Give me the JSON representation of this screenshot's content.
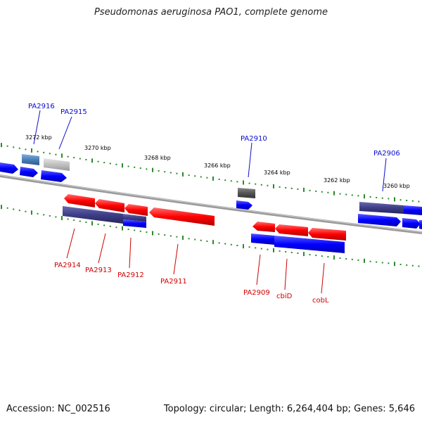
{
  "title": "Pseudomonas aeruginosa PAO1, complete genome",
  "footer": {
    "accession": "Accession: NC_002516",
    "topology": "Topology: circular; Length: 6,264,404 bp; Genes: 5,646"
  },
  "ticks": [
    "3272 kbp",
    "3270 kbp",
    "3268 kbp",
    "3266 kbp",
    "3264 kbp",
    "3262 kbp",
    "3260 kbp"
  ],
  "genes_top": [
    "PA2916",
    "PA2915",
    "PA2910",
    "PA2906"
  ],
  "genes_bottom": [
    "PA2914",
    "PA2913",
    "PA2912",
    "PA2911",
    "PA2909",
    "cbiD",
    "cobL"
  ],
  "colors": {
    "forward": "#0000ff",
    "reverse": "#ff0000",
    "forward_dark": "#3a3a8a",
    "tick": "#2a8a2a",
    "backbone": "#8a8a8a"
  }
}
